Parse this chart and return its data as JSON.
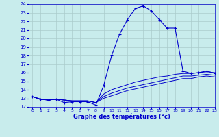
{
  "title": "Graphe des températures (°c)",
  "bg_color": "#c8ecec",
  "line_color": "#0000cc",
  "grid_color": "#aacccc",
  "ylim": [
    12,
    24
  ],
  "xlim": [
    -0.5,
    23
  ],
  "yticks": [
    12,
    13,
    14,
    15,
    16,
    17,
    18,
    19,
    20,
    21,
    22,
    23,
    24
  ],
  "xticks": [
    0,
    1,
    2,
    3,
    4,
    5,
    6,
    7,
    8,
    9,
    10,
    11,
    12,
    13,
    14,
    15,
    16,
    17,
    18,
    19,
    20,
    21,
    22,
    23
  ],
  "main_line": [
    13.2,
    12.9,
    12.8,
    12.9,
    12.5,
    12.6,
    12.6,
    12.6,
    12.2,
    14.5,
    18.0,
    20.5,
    22.2,
    23.5,
    23.8,
    23.2,
    22.2,
    21.2,
    21.2,
    16.2,
    15.9,
    16.0,
    16.2,
    15.9
  ],
  "line2": [
    13.2,
    12.9,
    12.8,
    12.9,
    12.8,
    12.7,
    12.7,
    12.7,
    12.5,
    13.5,
    14.0,
    14.3,
    14.6,
    14.9,
    15.1,
    15.3,
    15.5,
    15.6,
    15.8,
    15.9,
    15.9,
    16.0,
    16.1,
    16.0
  ],
  "line3": [
    13.2,
    12.9,
    12.8,
    12.9,
    12.8,
    12.7,
    12.7,
    12.7,
    12.5,
    13.2,
    13.6,
    13.9,
    14.2,
    14.4,
    14.6,
    14.8,
    15.0,
    15.2,
    15.4,
    15.6,
    15.6,
    15.7,
    15.8,
    15.7
  ],
  "line4": [
    13.2,
    12.9,
    12.8,
    12.9,
    12.8,
    12.7,
    12.7,
    12.7,
    12.5,
    13.0,
    13.3,
    13.6,
    13.9,
    14.1,
    14.3,
    14.5,
    14.7,
    14.9,
    15.1,
    15.3,
    15.3,
    15.5,
    15.6,
    15.5
  ]
}
